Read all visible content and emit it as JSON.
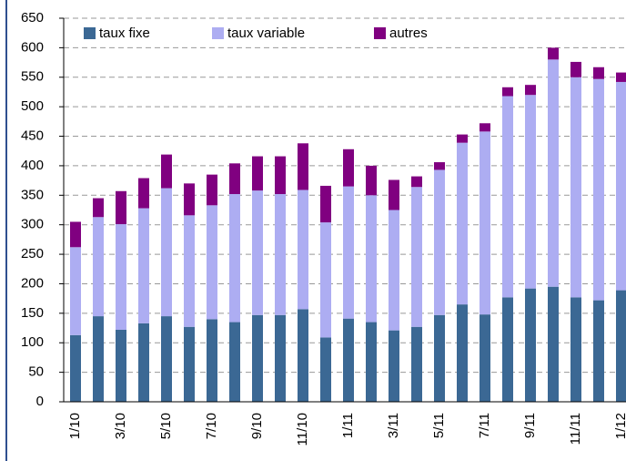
{
  "chart_data": {
    "type": "stacked_bar",
    "categories": [
      "1/10",
      null,
      "3/10",
      null,
      "5/10",
      null,
      "7/10",
      null,
      "9/10",
      null,
      "11/10",
      null,
      "1/11",
      null,
      "3/11",
      null,
      "5/11",
      null,
      "7/11",
      null,
      "9/11",
      null,
      "11/11",
      null,
      "1/12"
    ],
    "series": [
      {
        "name": "taux fixe",
        "color": "#3b6894",
        "values": [
          113,
          145,
          122,
          133,
          145,
          127,
          140,
          135,
          147,
          147,
          157,
          109,
          141,
          135,
          121,
          127,
          147,
          165,
          148,
          177,
          192,
          195,
          177,
          172,
          189
        ]
      },
      {
        "name": "taux variable",
        "color": "#adadf2",
        "values": [
          149,
          168,
          179,
          195,
          217,
          189,
          193,
          217,
          211,
          205,
          202,
          195,
          224,
          215,
          204,
          237,
          246,
          274,
          310,
          341,
          328,
          385,
          373,
          375,
          353
        ]
      },
      {
        "name": "autres",
        "color": "#800080",
        "values": [
          43,
          32,
          56,
          51,
          57,
          54,
          52,
          52,
          58,
          64,
          79,
          62,
          63,
          50,
          51,
          18,
          13,
          14,
          14,
          15,
          17,
          20,
          26,
          20,
          16
        ]
      }
    ],
    "ylim": [
      0,
      650
    ],
    "yticks": [
      0,
      50,
      100,
      150,
      200,
      250,
      300,
      350,
      400,
      450,
      500,
      550,
      600,
      650
    ],
    "grid": true,
    "legend": "top"
  }
}
